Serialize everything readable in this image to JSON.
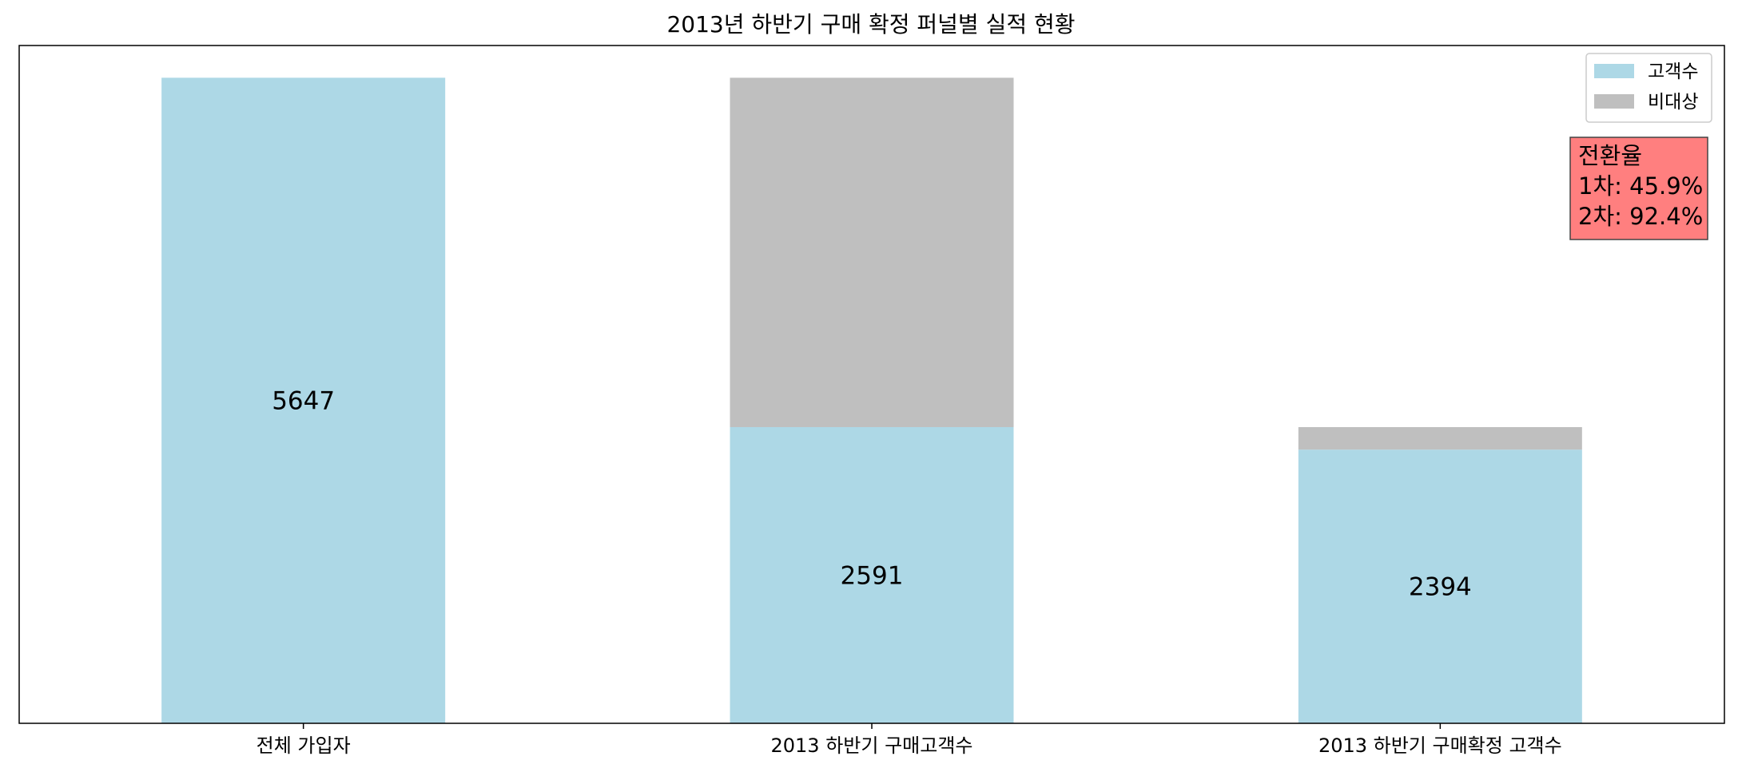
{
  "chart_data": {
    "type": "bar",
    "stacked": true,
    "title": "2013년 하반기 구매 확정 퍼널별 실적 현황",
    "xlabel": "",
    "ylabel": "",
    "categories": [
      "전체 가입자",
      "2013 하반기 구매고객수",
      "2013 하반기 구매확정 고객수"
    ],
    "series": [
      {
        "name": "고객수",
        "values": [
          5647,
          2591,
          2394
        ],
        "color": "#add8e6"
      },
      {
        "name": "비대상",
        "values": [
          0,
          3056,
          197
        ],
        "color": "#bfbfbf"
      }
    ],
    "data_labels": [
      "5647",
      "2591",
      "2394"
    ],
    "ylim": [
      0,
      5929
    ],
    "grid": false,
    "legend_position": "top-right",
    "annotation": {
      "lines": [
        "전환율",
        "1차: 45.9%",
        "2차: 92.4%"
      ],
      "background": "#ff7f7f",
      "position": "top-right"
    }
  }
}
